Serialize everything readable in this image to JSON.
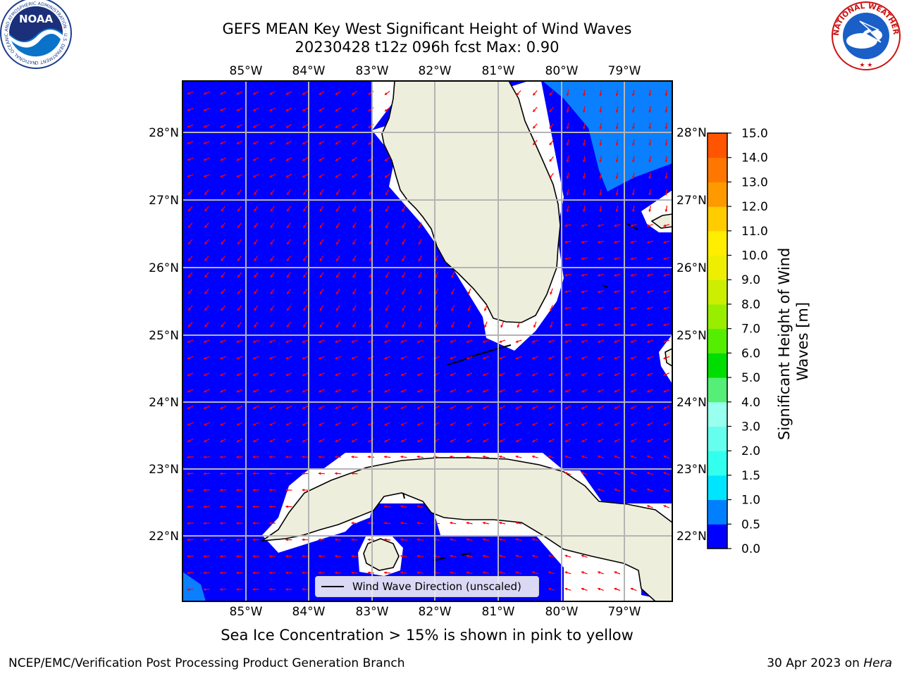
{
  "header": {
    "title_line1": "GEFS MEAN Key West Significant Height of Wind Waves",
    "title_line2": "20230428 t12z 096h fcst   Max: 0.90"
  },
  "logos": {
    "noaa_text": "NOAA",
    "noaa_ring_text": "NATIONAL OCEANIC AND ATMOSPHERIC ADMINISTRATION · U.S. DEPARTMENT OF COMMERCE ·",
    "nws_ring_text": "NATIONAL WEATHER SERVICE"
  },
  "map": {
    "lon_labels": [
      "85°W",
      "84°W",
      "83°W",
      "82°W",
      "81°W",
      "80°W",
      "79°W"
    ],
    "lat_labels": [
      "28°N",
      "27°N",
      "26°N",
      "25°N",
      "24°N",
      "23°N",
      "22°N"
    ],
    "ocean_color": "#0000ff",
    "land_color": "#eeeedd",
    "arrow_color": "#ff0000",
    "legend_label": "Wind Wave Direction (unscaled)"
  },
  "colorbar": {
    "label": "Significant Height of Wind Waves [m]",
    "ticks": [
      "0.0",
      "0.5",
      "1.0",
      "1.5",
      "2.0",
      "3.0",
      "4.0",
      "5.0",
      "6.0",
      "7.0",
      "8.0",
      "9.0",
      "10.0",
      "11.0",
      "12.0",
      "13.0",
      "14.0",
      "15.0"
    ],
    "colors": [
      "#0000ff",
      "#0080ff",
      "#00e5ff",
      "#33ffee",
      "#66ffee",
      "#99ffee",
      "#55ee77",
      "#00dd00",
      "#55ee00",
      "#99ee00",
      "#ccee00",
      "#eeee00",
      "#ffee00",
      "#ffcc00",
      "#ff9900",
      "#ff7700",
      "#ff5500",
      "#ff2200"
    ]
  },
  "footer": {
    "sea_ice_note": "Sea Ice Concentration > 15% is shown in pink to yellow",
    "credit": "NCEP/EMC/Verification Post Processing Product Generation Branch",
    "date": "30 Apr 2023 on ",
    "host": "Hera"
  }
}
